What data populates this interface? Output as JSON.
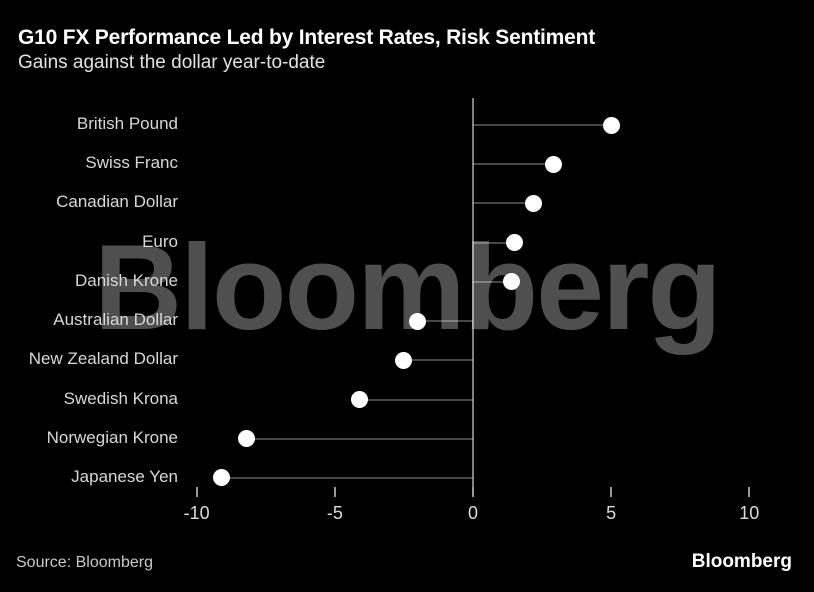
{
  "header": {
    "title": "G10 FX Performance Led by Interest Rates, Risk Sentiment",
    "subtitle": "Gains against the dollar year-to-date"
  },
  "watermark": {
    "text": "Bloomberg"
  },
  "footer": {
    "source": "Source: Bloomberg",
    "brand": "Bloomberg"
  },
  "colors": {
    "background": "#000000",
    "title": "#ffffff",
    "subtitle": "#e2e2e2",
    "category_label": "#d8d8d8",
    "dot": "#ffffff",
    "stem": "rgba(255,255,255,0.28)",
    "zero_line": "rgba(255,255,255,0.50)",
    "tick": "#9a9a9a",
    "tick_label": "#dcdcdc",
    "watermark": "#4f4f4f"
  },
  "chart_data": {
    "type": "scatter",
    "style": "horizontal-lollipop",
    "title": "G10 FX Performance Led by Interest Rates, Risk Sentiment",
    "subtitle": "Gains against the dollar year-to-date",
    "categories": [
      "British Pound",
      "Swiss Franc",
      "Canadian Dollar",
      "Euro",
      "Danish Krone",
      "Australian Dollar",
      "New Zealand Dollar",
      "Swedish Krona",
      "Norwegian Krone",
      "Japanese Yen"
    ],
    "values": [
      5.0,
      2.9,
      2.2,
      1.5,
      1.4,
      -2.0,
      -2.5,
      -4.1,
      -8.2,
      -9.1
    ],
    "baseline": 0,
    "xlabel": "",
    "ylabel": "",
    "xlim": [
      -10.3,
      11.6
    ],
    "xticks": [
      -10,
      -5,
      0,
      5,
      10
    ],
    "xtick_labels": [
      "-10",
      "-5",
      "0",
      "5",
      "10"
    ],
    "grid": false,
    "legend": false
  }
}
